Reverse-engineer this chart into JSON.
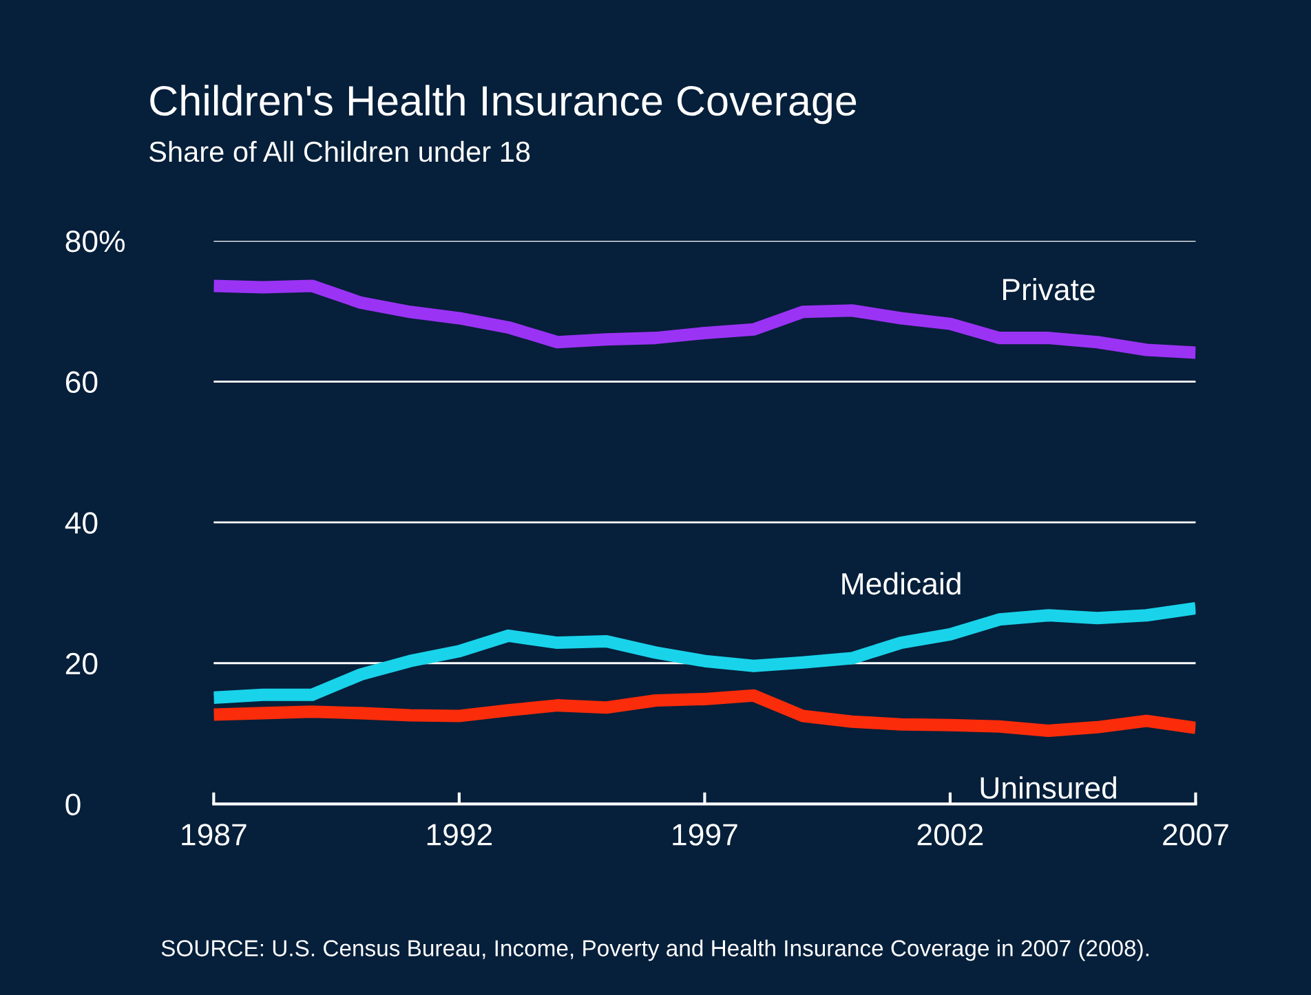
{
  "chart_data": {
    "type": "line",
    "title": "Children's Health Insurance Coverage",
    "subtitle": "Share of All Children under 18",
    "x": [
      1987,
      1988,
      1989,
      1990,
      1991,
      1992,
      1993,
      1994,
      1995,
      1996,
      1997,
      1998,
      1999,
      2000,
      2001,
      2002,
      2003,
      2004,
      2005,
      2006,
      2007
    ],
    "series": [
      {
        "name": "Private",
        "color": "#9b33f5",
        "values": [
          73.6,
          73.4,
          73.6,
          71.2,
          69.9,
          69.0,
          67.7,
          65.6,
          66.0,
          66.2,
          66.9,
          67.4,
          69.9,
          70.1,
          69.0,
          68.2,
          66.2,
          66.2,
          65.6,
          64.5,
          64.1
        ]
      },
      {
        "name": "Medicaid",
        "color": "#19d3ea",
        "values": [
          15.1,
          15.5,
          15.5,
          18.4,
          20.3,
          21.7,
          23.9,
          22.9,
          23.1,
          21.5,
          20.3,
          19.6,
          20.1,
          20.7,
          22.9,
          24.1,
          26.2,
          26.8,
          26.4,
          26.8,
          27.8
        ]
      },
      {
        "name": "Uninsured",
        "color": "#fa2c0a",
        "values": [
          12.7,
          12.9,
          13.1,
          12.9,
          12.6,
          12.5,
          13.3,
          14.0,
          13.7,
          14.7,
          14.9,
          15.4,
          12.5,
          11.7,
          11.3,
          11.2,
          11.0,
          10.4,
          10.9,
          11.8,
          10.8
        ]
      }
    ],
    "xlim": [
      1987,
      2007
    ],
    "xticks": [
      1987,
      1992,
      1997,
      2002,
      2007
    ],
    "ylim": [
      0,
      80
    ],
    "yticks": [
      0,
      20,
      40,
      60,
      {
        "value": 80,
        "label": "80%"
      }
    ],
    "grid": "y",
    "legend": false,
    "marker": "none",
    "line_style": "solid",
    "annotations": [
      "SOURCE: U.S. Census Bureau, Income, Poverty and Health Insurance Coverage in 2007 (2008)."
    ]
  }
}
